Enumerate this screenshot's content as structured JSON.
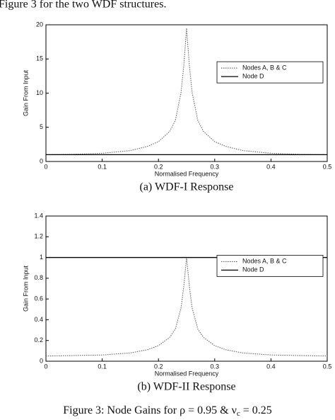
{
  "header_text": "Figure 3 for the two WDF structures.",
  "figure_caption": {
    "prefix": "Figure 3:  Node Gains for ρ = 0.95 & ν",
    "sub": "c",
    "suffix": " = 0.25"
  },
  "chart_data": [
    {
      "type": "line",
      "caption": "(a)  WDF-I Response",
      "x_label": "Normalised Frequency",
      "y_label": "Gain From Input",
      "x": [
        0,
        0.05,
        0.1,
        0.15,
        0.18,
        0.2,
        0.22,
        0.23,
        0.24,
        0.245,
        0.25,
        0.255,
        0.26,
        0.27,
        0.28,
        0.3,
        0.32,
        0.35,
        0.4,
        0.45,
        0.5
      ],
      "series": [
        {
          "name": "Nodes A, B & C",
          "color": "#666666",
          "linestyle": "dotted",
          "values": [
            1.0,
            1.05,
            1.2,
            1.6,
            2.2,
            2.9,
            4.4,
            6,
            10,
            14,
            19.5,
            14,
            10,
            6,
            4.4,
            2.9,
            2.2,
            1.6,
            1.2,
            1.05,
            1.0
          ]
        },
        {
          "name": "Node D",
          "color": "#000000",
          "linestyle": "solid",
          "values": [
            1,
            1,
            1,
            1,
            1,
            1,
            1,
            1,
            1,
            1,
            1,
            1,
            1,
            1,
            1,
            1,
            1,
            1,
            1,
            1,
            1
          ]
        }
      ],
      "xlim": [
        0,
        0.5
      ],
      "xticks": [
        0,
        0.1,
        0.2,
        0.3,
        0.4,
        0.5
      ],
      "ylim": [
        0,
        20
      ],
      "yticks": [
        0,
        5,
        10,
        15,
        20
      ],
      "legend": "upper right"
    },
    {
      "type": "line",
      "caption": "(b)  WDF-II Response",
      "x_label": "Normalised Frequency",
      "y_label": "Gain From Input",
      "x": [
        0,
        0.05,
        0.1,
        0.15,
        0.18,
        0.2,
        0.22,
        0.23,
        0.24,
        0.245,
        0.25,
        0.255,
        0.26,
        0.27,
        0.28,
        0.3,
        0.32,
        0.35,
        0.4,
        0.45,
        0.5
      ],
      "series": [
        {
          "name": "Nodes A, B & C",
          "color": "#666666",
          "linestyle": "dotted",
          "values": [
            0.05,
            0.055,
            0.06,
            0.08,
            0.11,
            0.15,
            0.23,
            0.31,
            0.51,
            0.72,
            1.0,
            0.72,
            0.51,
            0.31,
            0.23,
            0.15,
            0.11,
            0.08,
            0.06,
            0.055,
            0.05
          ]
        },
        {
          "name": "Node D",
          "color": "#000000",
          "linestyle": "solid",
          "values": [
            1,
            1,
            1,
            1,
            1,
            1,
            1,
            1,
            1,
            1,
            1,
            1,
            1,
            1,
            1,
            1,
            1,
            1,
            1,
            1,
            1
          ]
        }
      ],
      "xlim": [
        0,
        0.5
      ],
      "xticks": [
        0,
        0.1,
        0.2,
        0.3,
        0.4,
        0.5
      ],
      "ylim": [
        0,
        1.4
      ],
      "yticks": [
        0,
        0.2,
        0.4,
        0.6,
        0.8,
        1,
        1.2,
        1.4
      ],
      "legend": "upper right"
    }
  ]
}
